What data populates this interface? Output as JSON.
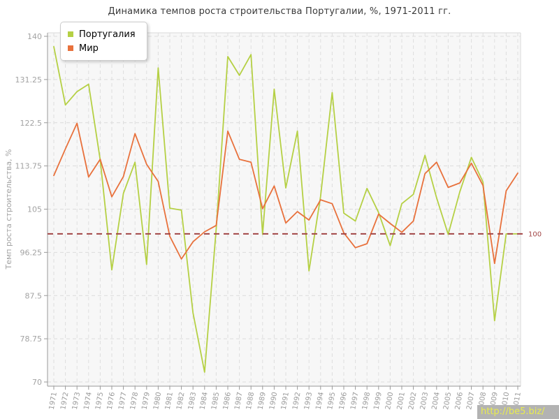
{
  "title": "Динамика темпов роста строительства Португалии, %, 1971-2011 гг.",
  "chart_data": {
    "type": "line",
    "title": "Динамика темпов роста строительства Португалии, %, 1971-2011 гг.",
    "ylabel": "Темп роста строительства, %",
    "xlabel": "",
    "ylim": [
      70,
      140
    ],
    "yticks": [
      "140",
      "131.25",
      "122.5",
      "113.75",
      "105",
      "96.25",
      "87.5",
      "78.75",
      "70"
    ],
    "grid": true,
    "legend_position": "top-left",
    "categories": [
      "1971",
      "1972",
      "1973",
      "1974",
      "1975",
      "1976",
      "1977",
      "1978",
      "1979",
      "1980",
      "1981",
      "1982",
      "1983",
      "1984",
      "1985",
      "1986",
      "1987",
      "1988",
      "1989",
      "1990",
      "1991",
      "1992",
      "1993",
      "1994",
      "1995",
      "1996",
      "1997",
      "1998",
      "1999",
      "2000",
      "2001",
      "2002",
      "2003",
      "2004",
      "2005",
      "2006",
      "2007",
      "2008",
      "2009",
      "2010",
      "2011"
    ],
    "series": [
      {
        "key": "portugal",
        "name": "Португалия",
        "color": "#b5d044",
        "values": [
          137.9,
          126.1,
          128.8,
          130.3,
          115.0,
          92.7,
          108.2,
          114.5,
          93.8,
          133.6,
          105.2,
          104.8,
          84.0,
          72.0,
          101.0,
          135.9,
          132.1,
          136.3,
          99.9,
          129.3,
          109.3,
          120.8,
          92.5,
          107.6,
          128.6,
          104.2,
          102.6,
          109.2,
          104.3,
          97.6,
          106.1,
          108.0,
          115.9,
          107.3,
          99.9,
          108.5,
          115.5,
          110.5,
          82.4,
          100.0,
          100.0
        ]
      },
      {
        "key": "world",
        "name": "Мир",
        "color": "#e8713c",
        "values": [
          111.8,
          117.2,
          122.4,
          111.5,
          115.1,
          107.5,
          111.6,
          120.3,
          114.1,
          110.6,
          99.5,
          94.9,
          98.4,
          100.4,
          101.7,
          120.8,
          115.1,
          114.5,
          105.1,
          109.7,
          102.2,
          104.5,
          102.8,
          106.9,
          106.1,
          100.2,
          97.2,
          98.0,
          104.0,
          102.1,
          100.3,
          102.6,
          112.2,
          114.5,
          109.4,
          110.3,
          114.3,
          109.8,
          94.0,
          108.7,
          112.3
        ]
      }
    ],
    "reference_line": {
      "value": 100,
      "label": "100",
      "color": "#a24646"
    }
  },
  "watermark": {
    "text": "http://be5.biz/",
    "background": "#b3b3b3",
    "color": "#e9ec4e"
  }
}
